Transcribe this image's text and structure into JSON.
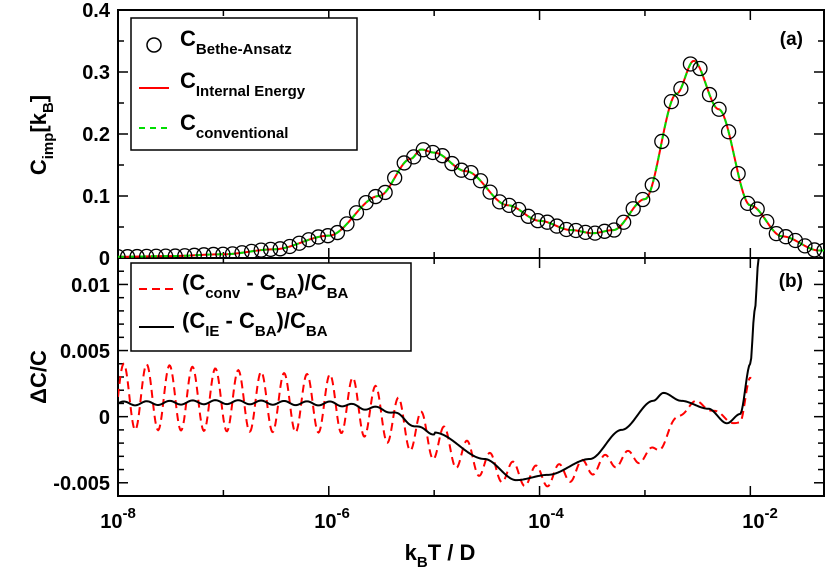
{
  "colors": {
    "bethe_ansatz": "#000000",
    "internal_energy": "#ff0000",
    "conventional": "#00dd00",
    "delta_conv": "#ff0000",
    "delta_ie": "#000000"
  },
  "xlabel": {
    "main": "k",
    "sub": "B",
    "tail": "T / D"
  },
  "x_ticks": [
    {
      "base": "10",
      "exp": "-8"
    },
    {
      "base": "10",
      "exp": "-6"
    },
    {
      "base": "10",
      "exp": "-4"
    },
    {
      "base": "10",
      "exp": "-2"
    }
  ],
  "panel_a": {
    "tag": "(a)",
    "ylabel": {
      "main": "C",
      "sub": "imp",
      "tail": "[k",
      "sub2": "B",
      "end": "]"
    },
    "legend": [
      {
        "main": "C",
        "sub": "Bethe-Ansatz"
      },
      {
        "main": "C",
        "sub": "Internal Energy"
      },
      {
        "main": "C",
        "sub": "conventional"
      }
    ]
  },
  "panel_b": {
    "tag": "(b)",
    "ylabel": "ΔC/C",
    "legend": [
      {
        "a": "(C",
        "a_sub": "conv",
        "b": " - C",
        "b_sub": "BA",
        "c": ")/C",
        "c_sub": "BA"
      },
      {
        "a": "(C",
        "a_sub": "IE",
        "b": " - C",
        "b_sub": "BA",
        "c": ")/C",
        "c_sub": "BA"
      }
    ]
  },
  "chart_data": [
    {
      "type": "scatter",
      "panel": "a",
      "x_scale": "log",
      "xlim": [
        1e-08,
        0.05
      ],
      "ylim": [
        0,
        0.4
      ],
      "y_ticks": [
        "0",
        "0.1",
        "0.2",
        "0.3",
        "0.4"
      ],
      "series": [
        {
          "name": "C Bethe-Ansatz",
          "style": "open-circles"
        },
        {
          "name": "C Internal Energy",
          "style": "solid-line"
        },
        {
          "name": "C conventional",
          "style": "dashed-line"
        }
      ],
      "x": [
        1e-08,
        3e-08,
        1e-07,
        3e-07,
        1e-06,
        3e-06,
        6e-06,
        7.5e-06,
        1e-05,
        2e-05,
        5e-05,
        0.0001,
        0.0002,
        0.00032,
        0.0005,
        0.001,
        0.002,
        0.0029,
        0.005,
        0.01,
        0.02,
        0.045
      ],
      "y": [
        0.002,
        0.003,
        0.006,
        0.014,
        0.036,
        0.1,
        0.16,
        0.175,
        0.17,
        0.14,
        0.085,
        0.06,
        0.045,
        0.04,
        0.045,
        0.095,
        0.265,
        0.318,
        0.24,
        0.085,
        0.035,
        0.012
      ]
    },
    {
      "type": "line",
      "panel": "b",
      "x_scale": "log",
      "xlim": [
        1e-08,
        0.05
      ],
      "ylim": [
        -0.006,
        0.012
      ],
      "y_ticks": [
        "-0.005",
        "0",
        "0.005",
        "0.01"
      ],
      "series": [
        {
          "name": "(Cconv - CBA)/CBA",
          "style": "dashed",
          "x": [
            1e-08,
            1e-06,
            0.0001,
            0.001,
            0.003,
            0.008,
            0.01
          ],
          "y": [
            0.0015,
            0.001,
            -0.0045,
            -0.003,
            0.001,
            -0.0005,
            0.003
          ],
          "amplitude": [
            0.0025,
            0.0022,
            0.0008,
            0.0005,
            0.0002,
            0.0001,
            0.0001
          ]
        },
        {
          "name": "(CIE - CBA)/CBA",
          "style": "solid",
          "x": [
            1e-08,
            1e-07,
            1e-06,
            3e-06,
            1e-05,
            3e-05,
            6e-05,
            0.00012,
            0.0003,
            0.0006,
            0.0012,
            0.0015,
            0.0022,
            0.004,
            0.006,
            0.008,
            0.01,
            0.011,
            0.012
          ],
          "y": [
            0.001,
            0.0011,
            0.001,
            0.0006,
            -0.0012,
            -0.0032,
            -0.0048,
            -0.0044,
            -0.0032,
            -0.001,
            0.0012,
            0.0018,
            0.0012,
            0.0006,
            -0.0005,
            0.0002,
            0.004,
            0.008,
            0.012
          ]
        }
      ]
    }
  ]
}
